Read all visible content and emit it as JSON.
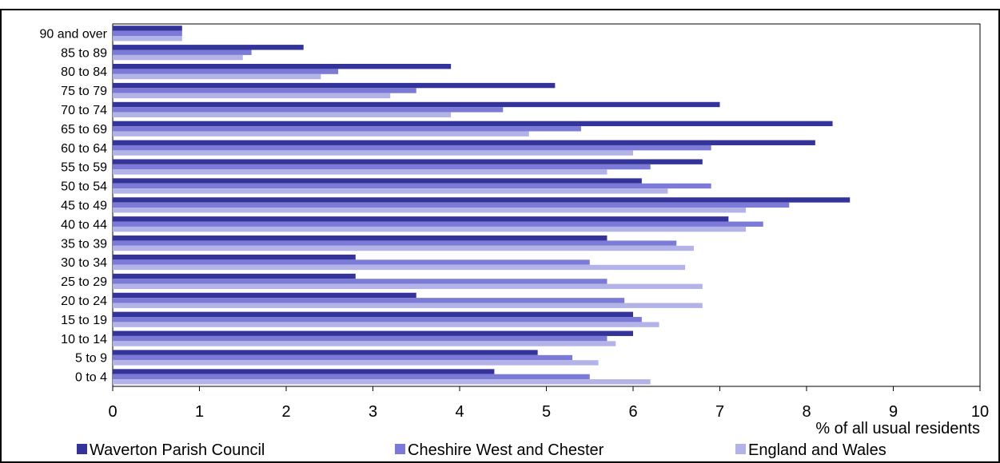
{
  "chart_data": {
    "type": "bar",
    "orientation": "horizontal",
    "title": "",
    "xlabel": "% of all usual residents",
    "ylabel": "",
    "xlim": [
      0,
      10
    ],
    "x_ticks": [
      "0",
      "1",
      "2",
      "3",
      "4",
      "5",
      "6",
      "7",
      "8",
      "9",
      "10"
    ],
    "grid": false,
    "legend_position": "bottom",
    "categories": [
      "90 and over",
      "85 to 89",
      "80 to 84",
      "75 to 79",
      "70 to 74",
      "65 to 69",
      "60 to 64",
      "55 to 59",
      "50 to 54",
      "45 to 49",
      "40 to 44",
      "35 to 39",
      "30 to 34",
      "25 to 29",
      "20 to 24",
      "15 to 19",
      "10 to 14",
      "5 to 9",
      "0 to 4"
    ],
    "series": [
      {
        "name": "Waverton Parish Council",
        "color": "#333399",
        "values": [
          0.8,
          2.2,
          3.9,
          5.1,
          7.0,
          8.3,
          8.1,
          6.8,
          6.1,
          8.5,
          7.1,
          5.7,
          2.8,
          2.8,
          3.5,
          6.0,
          6.0,
          4.9,
          4.4
        ]
      },
      {
        "name": "Cheshire West and Chester",
        "color": "#7b7bd7",
        "values": [
          0.8,
          1.6,
          2.6,
          3.5,
          4.5,
          5.4,
          6.9,
          6.2,
          6.9,
          7.8,
          7.5,
          6.5,
          5.5,
          5.7,
          5.9,
          6.1,
          5.7,
          5.3,
          5.5
        ]
      },
      {
        "name": "England and Wales",
        "color": "#b3b3e8",
        "values": [
          0.8,
          1.5,
          2.4,
          3.2,
          3.9,
          4.8,
          6.0,
          5.7,
          6.4,
          7.3,
          7.3,
          6.7,
          6.6,
          6.8,
          6.8,
          6.3,
          5.8,
          5.6,
          6.2
        ]
      }
    ]
  }
}
